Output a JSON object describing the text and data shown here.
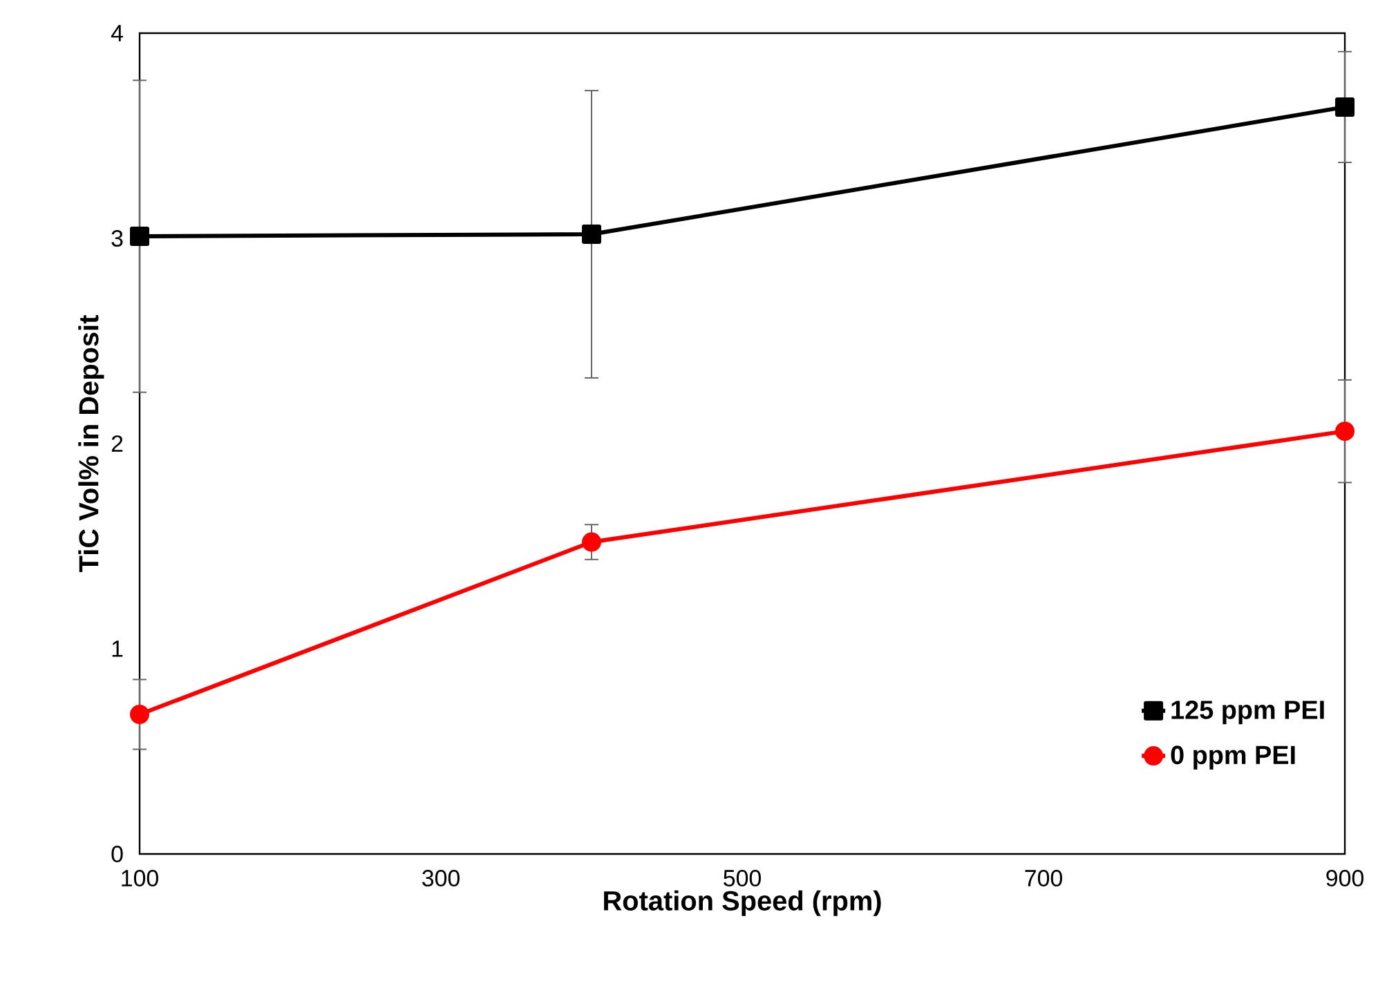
{
  "chart_data": {
    "type": "line",
    "xlabel": "Rotation Speed (rpm)",
    "ylabel": "TiC Vol% in Deposit",
    "x": [
      100,
      400,
      900
    ],
    "series": [
      {
        "name": "125 ppm PEI",
        "color": "#000000",
        "marker": "square",
        "values": [
          3.01,
          3.02,
          3.64
        ],
        "errors": [
          0.76,
          0.7,
          0.27
        ]
      },
      {
        "name": "0 ppm PEI",
        "color": "#ff0000",
        "marker": "circle",
        "values": [
          0.68,
          1.52,
          2.06
        ],
        "errors": [
          0.17,
          0.085,
          0.25
        ]
      }
    ],
    "xlim": [
      100,
      900
    ],
    "xticks": [
      100,
      300,
      500,
      700,
      900
    ],
    "ylim": [
      0,
      4
    ],
    "yticks": [
      0,
      1,
      2,
      3,
      4
    ],
    "grid": false,
    "legend": "bottom right",
    "line_style": "solid"
  }
}
